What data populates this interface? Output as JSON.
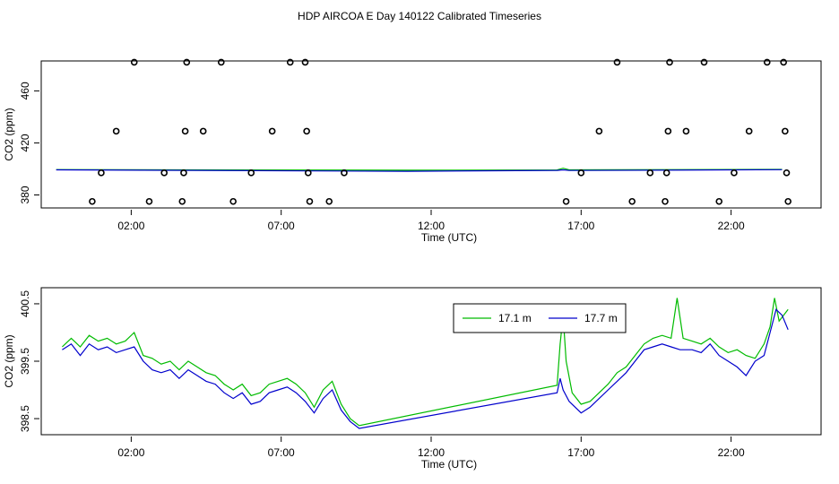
{
  "title": "HDP AIRCOA E  Day 140122  Calibrated Timeseries",
  "chart_data": [
    {
      "type": "scatter",
      "xlabel": "Time (UTC)",
      "ylabel": "CO2 (ppm)",
      "xlim": [
        -1.0,
        25.0
      ],
      "ylim": [
        370,
        483
      ],
      "x_ticks": [
        {
          "v": 2,
          "label": "02:00"
        },
        {
          "v": 7,
          "label": "07:00"
        },
        {
          "v": 12,
          "label": "12:00"
        },
        {
          "v": 17,
          "label": "17:00"
        },
        {
          "v": 22,
          "label": "22:00"
        }
      ],
      "y_ticks": [
        {
          "v": 380,
          "label": "380"
        },
        {
          "v": 420,
          "label": "420"
        },
        {
          "v": 460,
          "label": "460"
        }
      ],
      "reference_points": [
        {
          "x": 1.5,
          "y": 429
        },
        {
          "x": 2.1,
          "y": 482
        },
        {
          "x": 0.7,
          "y": 375
        },
        {
          "x": 1.0,
          "y": 397
        },
        {
          "x": 2.6,
          "y": 375
        },
        {
          "x": 3.1,
          "y": 397
        },
        {
          "x": 3.7,
          "y": 375
        },
        {
          "x": 3.75,
          "y": 397
        },
        {
          "x": 3.8,
          "y": 429
        },
        {
          "x": 3.85,
          "y": 482
        },
        {
          "x": 4.4,
          "y": 429
        },
        {
          "x": 5.0,
          "y": 482
        },
        {
          "x": 5.4,
          "y": 375
        },
        {
          "x": 6.0,
          "y": 397
        },
        {
          "x": 6.7,
          "y": 429
        },
        {
          "x": 7.3,
          "y": 482
        },
        {
          "x": 7.8,
          "y": 482
        },
        {
          "x": 7.85,
          "y": 429
        },
        {
          "x": 7.9,
          "y": 397
        },
        {
          "x": 7.95,
          "y": 375
        },
        {
          "x": 8.6,
          "y": 375
        },
        {
          "x": 9.1,
          "y": 397
        },
        {
          "x": 16.5,
          "y": 375
        },
        {
          "x": 17.0,
          "y": 397
        },
        {
          "x": 17.6,
          "y": 429
        },
        {
          "x": 18.2,
          "y": 482
        },
        {
          "x": 18.7,
          "y": 375
        },
        {
          "x": 19.3,
          "y": 397
        },
        {
          "x": 19.8,
          "y": 375
        },
        {
          "x": 19.85,
          "y": 397
        },
        {
          "x": 19.9,
          "y": 429
        },
        {
          "x": 19.95,
          "y": 482
        },
        {
          "x": 20.5,
          "y": 429
        },
        {
          "x": 21.1,
          "y": 482
        },
        {
          "x": 21.6,
          "y": 375
        },
        {
          "x": 22.1,
          "y": 397
        },
        {
          "x": 22.6,
          "y": 429
        },
        {
          "x": 23.2,
          "y": 482
        },
        {
          "x": 23.75,
          "y": 482
        },
        {
          "x": 23.8,
          "y": 429
        },
        {
          "x": 23.85,
          "y": 397
        },
        {
          "x": 23.9,
          "y": 375
        }
      ],
      "series": [
        {
          "color": "#00bb00",
          "points": [
            [
              -0.5,
              399.5
            ],
            [
              11.2,
              399.0
            ],
            [
              16.2,
              399.2
            ],
            [
              16.4,
              400.5
            ],
            [
              16.6,
              399.3
            ],
            [
              23.7,
              399.6
            ]
          ]
        },
        {
          "color": "#0000cc",
          "points": [
            [
              -0.5,
              399.3
            ],
            [
              11.2,
              398.2
            ],
            [
              16.2,
              398.9
            ],
            [
              16.4,
              399.3
            ],
            [
              16.6,
              398.8
            ],
            [
              23.7,
              399.4
            ]
          ]
        }
      ]
    },
    {
      "type": "line",
      "xlabel": "Time (UTC)",
      "ylabel": "CO2 (ppm)",
      "xlim": [
        -1.0,
        25.0
      ],
      "ylim": [
        398.22,
        400.78
      ],
      "x_ticks": [
        {
          "v": 2,
          "label": "02:00"
        },
        {
          "v": 7,
          "label": "07:00"
        },
        {
          "v": 12,
          "label": "12:00"
        },
        {
          "v": 17,
          "label": "17:00"
        },
        {
          "v": 22,
          "label": "22:00"
        }
      ],
      "y_ticks": [
        {
          "v": 398.5,
          "label": "398.5"
        },
        {
          "v": 399.5,
          "label": "399.5"
        },
        {
          "v": 400.5,
          "label": "400.5"
        }
      ],
      "legend": "top-center",
      "series": [
        {
          "name": "17.1 m",
          "color": "#00bb00",
          "points": [
            [
              -0.3,
              399.75
            ],
            [
              0.0,
              399.9
            ],
            [
              0.3,
              399.75
            ],
            [
              0.6,
              399.95
            ],
            [
              0.9,
              399.85
            ],
            [
              1.2,
              399.9
            ],
            [
              1.5,
              399.8
            ],
            [
              1.8,
              399.85
            ],
            [
              2.1,
              400.0
            ],
            [
              2.4,
              399.6
            ],
            [
              2.7,
              399.55
            ],
            [
              3.0,
              399.45
            ],
            [
              3.3,
              399.5
            ],
            [
              3.6,
              399.35
            ],
            [
              3.9,
              399.5
            ],
            [
              4.2,
              399.4
            ],
            [
              4.5,
              399.3
            ],
            [
              4.8,
              399.25
            ],
            [
              5.1,
              399.1
            ],
            [
              5.4,
              399.0
            ],
            [
              5.7,
              399.1
            ],
            [
              6.0,
              398.9
            ],
            [
              6.3,
              398.95
            ],
            [
              6.6,
              399.1
            ],
            [
              6.9,
              399.15
            ],
            [
              7.2,
              399.2
            ],
            [
              7.5,
              399.1
            ],
            [
              7.8,
              398.95
            ],
            [
              8.1,
              398.7
            ],
            [
              8.4,
              399.0
            ],
            [
              8.7,
              399.15
            ],
            [
              9.0,
              398.75
            ],
            [
              9.3,
              398.5
            ],
            [
              9.6,
              398.38
            ],
            [
              16.2,
              399.08
            ],
            [
              16.3,
              399.8
            ],
            [
              16.4,
              400.3
            ],
            [
              16.5,
              399.5
            ],
            [
              16.7,
              398.95
            ],
            [
              17.0,
              398.75
            ],
            [
              17.3,
              398.8
            ],
            [
              17.6,
              398.95
            ],
            [
              17.9,
              399.1
            ],
            [
              18.2,
              399.3
            ],
            [
              18.5,
              399.4
            ],
            [
              18.8,
              399.6
            ],
            [
              19.1,
              399.8
            ],
            [
              19.4,
              399.9
            ],
            [
              19.7,
              399.95
            ],
            [
              20.0,
              399.9
            ],
            [
              20.2,
              400.6
            ],
            [
              20.4,
              399.9
            ],
            [
              20.7,
              399.85
            ],
            [
              21.0,
              399.8
            ],
            [
              21.3,
              399.9
            ],
            [
              21.6,
              399.75
            ],
            [
              21.9,
              399.65
            ],
            [
              22.2,
              399.7
            ],
            [
              22.5,
              399.6
            ],
            [
              22.8,
              399.55
            ],
            [
              23.1,
              399.8
            ],
            [
              23.3,
              400.1
            ],
            [
              23.45,
              400.6
            ],
            [
              23.6,
              400.2
            ],
            [
              23.9,
              400.4
            ]
          ]
        },
        {
          "name": "17.7 m",
          "color": "#0000cc",
          "points": [
            [
              -0.3,
              399.7
            ],
            [
              0.0,
              399.8
            ],
            [
              0.3,
              399.6
            ],
            [
              0.6,
              399.8
            ],
            [
              0.9,
              399.7
            ],
            [
              1.2,
              399.75
            ],
            [
              1.5,
              399.65
            ],
            [
              1.8,
              399.7
            ],
            [
              2.1,
              399.75
            ],
            [
              2.4,
              399.5
            ],
            [
              2.7,
              399.35
            ],
            [
              3.0,
              399.3
            ],
            [
              3.3,
              399.35
            ],
            [
              3.6,
              399.2
            ],
            [
              3.9,
              399.35
            ],
            [
              4.2,
              399.25
            ],
            [
              4.5,
              399.15
            ],
            [
              4.8,
              399.1
            ],
            [
              5.1,
              398.95
            ],
            [
              5.4,
              398.85
            ],
            [
              5.7,
              398.95
            ],
            [
              6.0,
              398.75
            ],
            [
              6.3,
              398.8
            ],
            [
              6.6,
              398.95
            ],
            [
              6.9,
              399.0
            ],
            [
              7.2,
              399.05
            ],
            [
              7.5,
              398.95
            ],
            [
              7.8,
              398.8
            ],
            [
              8.1,
              398.6
            ],
            [
              8.4,
              398.85
            ],
            [
              8.7,
              399.0
            ],
            [
              9.0,
              398.65
            ],
            [
              9.3,
              398.45
            ],
            [
              9.6,
              398.33
            ],
            [
              16.2,
              398.95
            ],
            [
              16.3,
              399.2
            ],
            [
              16.4,
              399.0
            ],
            [
              16.6,
              398.8
            ],
            [
              17.0,
              398.6
            ],
            [
              17.3,
              398.7
            ],
            [
              17.6,
              398.85
            ],
            [
              17.9,
              399.0
            ],
            [
              18.2,
              399.15
            ],
            [
              18.5,
              399.3
            ],
            [
              18.8,
              399.5
            ],
            [
              19.1,
              399.7
            ],
            [
              19.4,
              399.75
            ],
            [
              19.7,
              399.8
            ],
            [
              20.0,
              399.75
            ],
            [
              20.3,
              399.7
            ],
            [
              20.7,
              399.7
            ],
            [
              21.0,
              399.65
            ],
            [
              21.3,
              399.8
            ],
            [
              21.6,
              399.6
            ],
            [
              21.9,
              399.5
            ],
            [
              22.2,
              399.4
            ],
            [
              22.5,
              399.25
            ],
            [
              22.8,
              399.5
            ],
            [
              23.1,
              399.6
            ],
            [
              23.3,
              400.0
            ],
            [
              23.5,
              400.4
            ],
            [
              23.7,
              400.3
            ],
            [
              23.9,
              400.05
            ]
          ]
        }
      ]
    }
  ]
}
